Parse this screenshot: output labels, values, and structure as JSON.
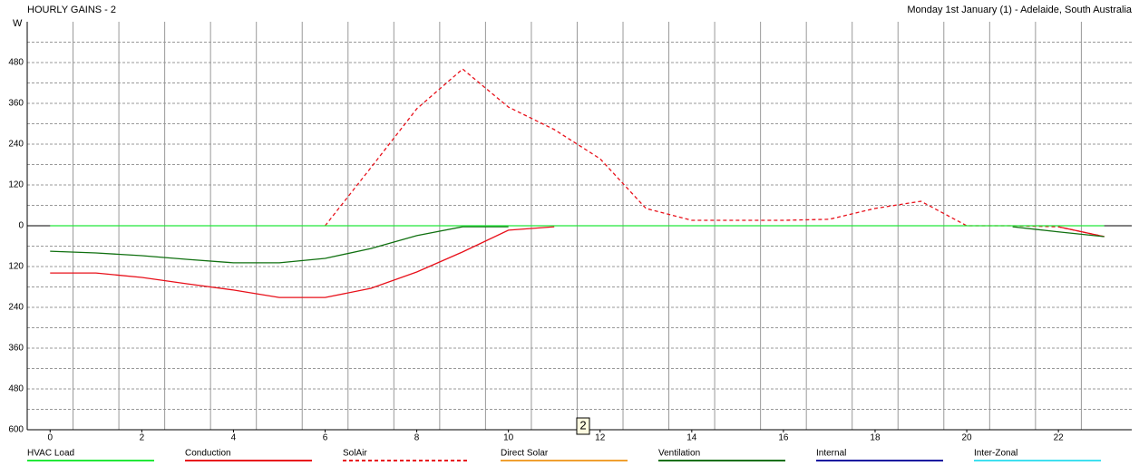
{
  "chart_data": {
    "type": "line",
    "title": "HOURLY GAINS - 2",
    "subtitle": "Monday 1st January (1) - Adelaide, South Australia",
    "y_label": "W",
    "annotation": "2",
    "x": [
      0,
      1,
      2,
      3,
      4,
      5,
      6,
      7,
      8,
      9,
      10,
      11,
      12,
      13,
      14,
      15,
      16,
      17,
      18,
      19,
      20,
      21,
      22,
      23
    ],
    "xlim": [
      -0.5,
      23.6
    ],
    "xticks": [
      0,
      2,
      4,
      6,
      8,
      10,
      12,
      14,
      16,
      18,
      20,
      22
    ],
    "xminor_ticks": [
      -0.5,
      0.5,
      1.5,
      2.5,
      3.5,
      4.5,
      5.5,
      6.5,
      7.5,
      8.5,
      9.5,
      10.5,
      11.5,
      12.5,
      13.5,
      14.5,
      15.5,
      16.5,
      17.5,
      18.5,
      19.5,
      20.5,
      21.5,
      22.5
    ],
    "ylim": [
      -600,
      600
    ],
    "yticks": [
      {
        "value": -600,
        "label": "600"
      },
      {
        "value": -480,
        "label": "480"
      },
      {
        "value": -360,
        "label": "360"
      },
      {
        "value": -240,
        "label": "240"
      },
      {
        "value": -120,
        "label": "120"
      },
      0,
      120,
      240,
      360,
      480
    ],
    "yminor_ticks": [
      -540,
      -420,
      -300,
      -180,
      -60,
      60,
      180,
      300,
      420,
      540
    ],
    "grid": true,
    "series": [
      {
        "name": "HVAC Load",
        "color": "#22e83a",
        "values": [
          0,
          0,
          0,
          0,
          0,
          0,
          0,
          0,
          0,
          0,
          0,
          0,
          0,
          0,
          0,
          0,
          0,
          0,
          0,
          0,
          0,
          0,
          0,
          0
        ]
      },
      {
        "name": "Conduction",
        "color": "#e8101a",
        "values": [
          -139,
          -139,
          -152,
          -171,
          -189,
          -211,
          -211,
          -184,
          -136,
          -77,
          -13,
          -3,
          null,
          null,
          null,
          null,
          null,
          null,
          null,
          null,
          null,
          null,
          -3,
          -32
        ]
      },
      {
        "name": "SolAir",
        "color": "#e8101a",
        "dash": true,
        "values": [
          null,
          null,
          null,
          null,
          null,
          null,
          0,
          171,
          344,
          461,
          349,
          283,
          197,
          51,
          16,
          16,
          16,
          19,
          51,
          72,
          0,
          0,
          -3,
          -32
        ]
      },
      {
        "name": "Direct Solar",
        "color": "#f0a030",
        "values": [
          null,
          null,
          null,
          null,
          null,
          null,
          null,
          null,
          null,
          null,
          null,
          null,
          null,
          null,
          null,
          null,
          null,
          null,
          null,
          null,
          null,
          null,
          null,
          null
        ]
      },
      {
        "name": "Ventilation",
        "color": "#107010",
        "values": [
          -75,
          -80,
          -88,
          -99,
          -109,
          -109,
          -96,
          -67,
          -29,
          -3,
          -3,
          null,
          null,
          null,
          null,
          null,
          null,
          null,
          null,
          null,
          null,
          -3,
          -18,
          -32
        ]
      },
      {
        "name": "Internal",
        "color": "#1010a0",
        "values": [
          null,
          null,
          null,
          null,
          null,
          null,
          null,
          null,
          null,
          null,
          null,
          null,
          null,
          null,
          null,
          null,
          null,
          null,
          null,
          null,
          null,
          null,
          null,
          null
        ]
      },
      {
        "name": "Inter-Zonal",
        "color": "#40e0f0",
        "values": [
          null,
          null,
          null,
          null,
          null,
          null,
          null,
          null,
          null,
          null,
          null,
          null,
          null,
          null,
          null,
          null,
          null,
          null,
          null,
          null,
          null,
          null,
          null,
          null
        ]
      }
    ]
  }
}
